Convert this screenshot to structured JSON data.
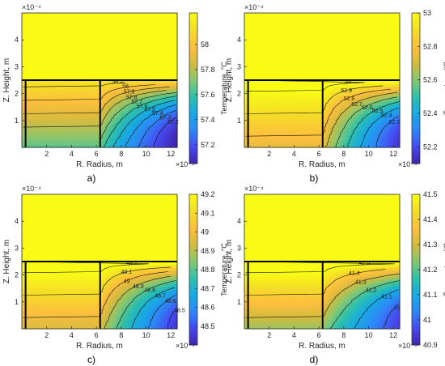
{
  "colormap": [
    "#3e26a8",
    "#4748f0",
    "#2e87f7",
    "#17a9e3",
    "#2dc0ab",
    "#85c770",
    "#d3bb3f",
    "#fdbe3d",
    "#f4dd27",
    "#f9fb15"
  ],
  "chart_data": [
    {
      "type": "heatmap",
      "caption": "a)",
      "xlabel": "R. Radius, m",
      "ylabel": "Z. Height, m",
      "x_exponent": "×10⁻⁵",
      "y_exponent": "×10⁻⁴",
      "xlim": [
        0,
        12.5
      ],
      "ylim": [
        0,
        5
      ],
      "xticks": [
        "2",
        "4",
        "6",
        "8",
        "10",
        "12"
      ],
      "yticks": [
        "1",
        "2",
        "3",
        "4"
      ],
      "colorbar_label": "Temperature, °C",
      "clim": [
        57.05,
        58.25
      ],
      "colorbar_ticks": [
        "57.2",
        "57.4",
        "57.6",
        "57.8",
        "58"
      ],
      "t_left_bottom": 57.65,
      "t_left_top": 58.15,
      "t_right_bottom": 57.05,
      "t_max": 58.25,
      "contour_labels": [
        "58.1",
        "58",
        "57.9",
        "57.8",
        "57.7",
        "57.6",
        "57.5",
        "57.4",
        "57.3",
        "57.2"
      ]
    },
    {
      "type": "heatmap",
      "caption": "b)",
      "xlabel": "R. Radius, m",
      "ylabel": "Z. Height, m",
      "x_exponent": "×10⁻⁵",
      "y_exponent": "×10⁻⁴",
      "xlim": [
        0,
        12.5
      ],
      "ylim": [
        0,
        5
      ],
      "xticks": [
        "2",
        "4",
        "6",
        "8",
        "10",
        "12"
      ],
      "yticks": [
        "1",
        "2",
        "3",
        "4"
      ],
      "colorbar_label": "Temperature, °C",
      "clim": [
        52.1,
        53
      ],
      "colorbar_ticks": [
        "52.2",
        "52.4",
        "52.6",
        "52.8",
        "53"
      ],
      "t_left_bottom": 52.75,
      "t_left_top": 53.05,
      "t_right_bottom": 52.15,
      "t_max": 53.0,
      "contour_labels": [
        "53",
        "52.9",
        "52.8",
        "52.7",
        "52.6",
        "52.5",
        "52.4",
        "52.3"
      ]
    },
    {
      "type": "heatmap",
      "caption": "c)",
      "xlabel": "R. Radius, m",
      "ylabel": "Z. Height, m",
      "x_exponent": "×10⁻⁵",
      "y_exponent": "×10⁻⁴",
      "xlim": [
        0,
        12.5
      ],
      "ylim": [
        0,
        5
      ],
      "xticks": [
        "2",
        "4",
        "6",
        "8",
        "10",
        "12"
      ],
      "yticks": [
        "1",
        "2",
        "3",
        "4"
      ],
      "colorbar_label": "Temperature, °C",
      "clim": [
        48.4,
        49.2
      ],
      "colorbar_ticks": [
        "48.5",
        "48.6",
        "48.7",
        "48.8",
        "48.9",
        "49",
        "49.1",
        "49.2"
      ],
      "t_left_bottom": 48.95,
      "t_left_top": 49.25,
      "t_right_bottom": 48.45,
      "t_max": 49.2,
      "contour_labels": [
        "49.2",
        "49.1",
        "49",
        "48.9",
        "48.8",
        "48.7",
        "48.6",
        "48.5"
      ]
    },
    {
      "type": "heatmap",
      "caption": "d)",
      "xlabel": "R. Radius, m",
      "ylabel": "Z. Height, m",
      "x_exponent": "×10⁻⁵",
      "y_exponent": "×10⁻⁴",
      "xlim": [
        0,
        12.5
      ],
      "ylim": [
        0,
        5
      ],
      "xticks": [
        "2",
        "4",
        "6",
        "8",
        "10",
        "12"
      ],
      "yticks": [
        "1",
        "2",
        "3",
        "4"
      ],
      "colorbar_label": "Temperature, °C",
      "clim": [
        40.9,
        41.5
      ],
      "colorbar_ticks": [
        "40.9",
        "41",
        "41.1",
        "41.2",
        "41.3",
        "41.4",
        "41.5"
      ],
      "t_left_bottom": 41.25,
      "t_left_top": 41.55,
      "t_right_bottom": 40.95,
      "t_max": 41.5,
      "contour_labels": [
        "41.5",
        "41.4",
        "41.3",
        "41.2",
        "41.1",
        "41"
      ]
    }
  ]
}
